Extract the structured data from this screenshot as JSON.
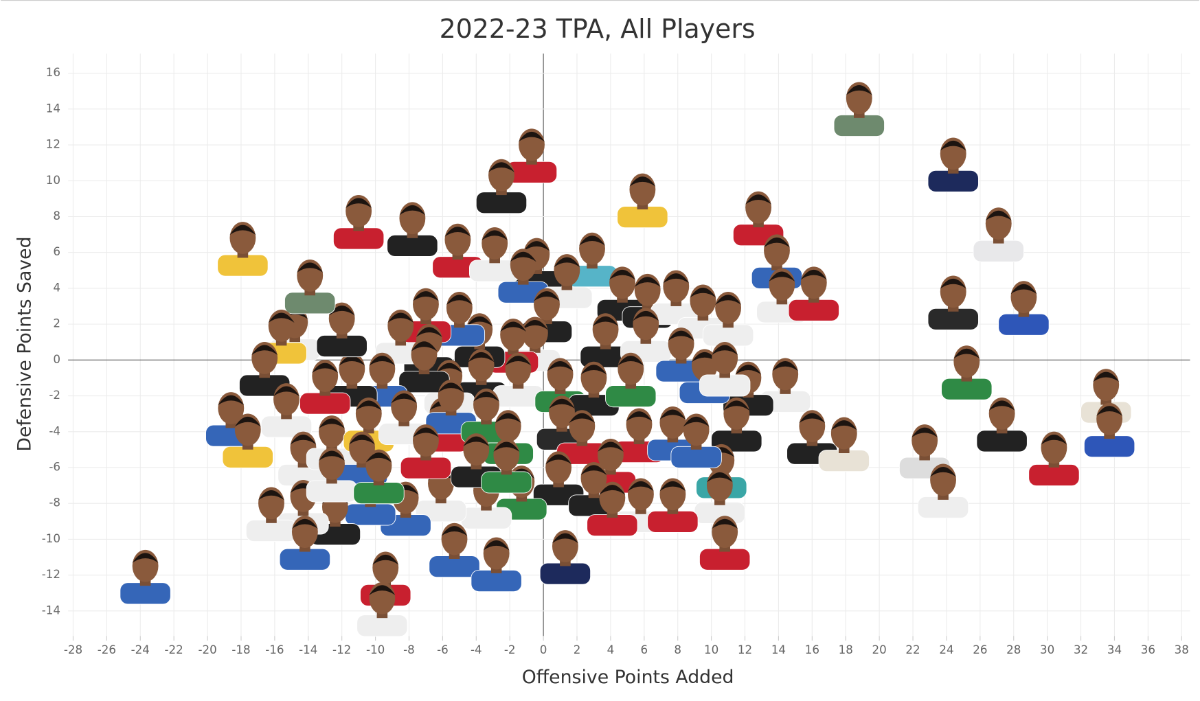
{
  "chart_data": {
    "type": "scatter",
    "title": "2022-23 TPA, All Players",
    "x_label": "Offensive Points Added",
    "y_label": "Defensive Points Saved",
    "xlim": [
      -28.3,
      38.5
    ],
    "ylim": [
      -15.4,
      17.1
    ],
    "xticks": [
      -28,
      -26,
      -24,
      -22,
      -20,
      -18,
      -16,
      -14,
      -12,
      -10,
      -8,
      -6,
      -4,
      -2,
      0,
      2,
      4,
      6,
      8,
      10,
      12,
      14,
      16,
      18,
      20,
      22,
      24,
      26,
      28,
      30,
      32,
      34,
      36,
      38
    ],
    "yticks": [
      -14,
      -12,
      -10,
      -8,
      -6,
      -4,
      -2,
      0,
      2,
      4,
      6,
      8,
      10,
      12,
      14,
      16
    ],
    "grid": true,
    "x": [
      18.8,
      24.4,
      27.1,
      24.4,
      28.6,
      25.2,
      27.3,
      33.5,
      33.7,
      30.4,
      22.7,
      23.8,
      12.8,
      13.9,
      14.2,
      16.1,
      14.4,
      12.2,
      11.5,
      16.0,
      17.9,
      10.6,
      10.5,
      10.8,
      -0.7,
      -2.5,
      5.9,
      2.9,
      -0.4,
      -5.1,
      -2.9,
      -1.2,
      1.4,
      4.7,
      6.2,
      7.9,
      9.5,
      11.0,
      0.2,
      3.7,
      6.1,
      8.2,
      9.6,
      10.8,
      -0.5,
      -1.8,
      -3.8,
      -5.0,
      -7.0,
      -6.8,
      -8.5,
      -3.7,
      -1.5,
      1.0,
      3.0,
      5.2,
      -5.6,
      -7.1,
      -9.6,
      -11.4,
      -13.0,
      -14.8,
      -12.0,
      -13.9,
      -15.6,
      -16.6,
      -15.3,
      -18.6,
      -17.6,
      -14.3,
      -12.6,
      -10.4,
      -8.3,
      -6.0,
      -5.5,
      -3.4,
      -2.1,
      1.1,
      2.3,
      5.7,
      7.7,
      9.1,
      4.0,
      0.9,
      3.0,
      5.8,
      7.7,
      4.1,
      -1.3,
      -3.4,
      -6.1,
      -8.2,
      -10.3,
      -12.4,
      -14.3,
      -16.2,
      -14.2,
      -5.3,
      -2.8,
      1.3,
      -9.4,
      -9.6,
      -23.7,
      -17.9,
      -11.0,
      -7.8,
      -10.8,
      -12.6,
      -9.8,
      -7.0,
      -4.0,
      -2.2
    ],
    "values": [
      14.1,
      11.0,
      7.1,
      3.3,
      3.0,
      -0.6,
      -3.5,
      -1.9,
      -3.8,
      -5.4,
      -5.0,
      -7.2,
      8.0,
      5.6,
      3.7,
      3.8,
      -1.3,
      -1.5,
      -3.5,
      -4.2,
      -4.6,
      -6.1,
      -7.5,
      -10.1,
      11.5,
      9.8,
      9.0,
      5.7,
      5.4,
      6.2,
      6.0,
      4.8,
      4.5,
      3.8,
      3.4,
      3.6,
      2.8,
      2.4,
      2.6,
      1.2,
      1.5,
      0.4,
      -0.8,
      -0.4,
      1.0,
      0.9,
      1.2,
      2.4,
      2.6,
      0.6,
      1.4,
      -0.8,
      -1.0,
      -1.3,
      -1.5,
      -1.0,
      -1.4,
      -0.2,
      -1.0,
      -1.0,
      -1.4,
      1.6,
      1.8,
      4.2,
      1.4,
      -0.4,
      -2.7,
      -3.2,
      -4.4,
      -5.4,
      -4.5,
      -3.5,
      -3.1,
      -3.5,
      -2.5,
      -3.0,
      -4.2,
      -3.4,
      -4.2,
      -4.1,
      -4.0,
      -4.4,
      -5.8,
      -6.5,
      -7.1,
      -8.0,
      -8.0,
      -8.2,
      -7.3,
      -7.8,
      -7.4,
      -8.2,
      -7.6,
      -8.7,
      -8.1,
      -8.5,
      -10.1,
      -10.5,
      -11.3,
      -10.9,
      -12.1,
      -13.8,
      -12.0,
      6.3,
      7.8,
      7.4,
      -5.4,
      -6.3,
      -6.4,
      -5.0,
      -5.5,
      -5.8
    ],
    "colors": [
      "#6e8a6e",
      "#1d2a5c",
      "#e8e8ea",
      "#2a2a2a",
      "#2e56b8",
      "#2f8a45",
      "#222222",
      "#e8e2d6",
      "#2e56b8",
      "#c8202f",
      "#dddddd",
      "#eeeeee",
      "#c8202f",
      "#3566b8",
      "#eeeeee",
      "#c8202f",
      "#eeeeee",
      "#222222",
      "#222222",
      "#222222",
      "#e8e2d6",
      "#3aa6a6",
      "#eeeeee",
      "#c8202f",
      "#c8202f",
      "#222222",
      "#f0c33a",
      "#56b4c8",
      "#222222",
      "#c8202f",
      "#eeeeee",
      "#3566b8",
      "#eeeeee",
      "#222222",
      "#222222",
      "#eeeeee",
      "#eeeeee",
      "#eeeeee",
      "#222222",
      "#222222",
      "#eeeeee",
      "#3566b8",
      "#3566b8",
      "#eeeeee",
      "#eeeeee",
      "#c8202f",
      "#222222",
      "#3566b8",
      "#c8202f",
      "#222222",
      "#eeeeee",
      "#222222",
      "#eeeeee",
      "#2f8a45",
      "#222222",
      "#2f8a45",
      "#eeeeee",
      "#222222",
      "#3566b8",
      "#222222",
      "#c8202f",
      "#eeeeee",
      "#222222",
      "#6e8a6e",
      "#f0c33a",
      "#222222",
      "#eeeeee",
      "#3566b8",
      "#f0c33a",
      "#eeeeee",
      "#eeeeee",
      "#f0c33a",
      "#eeeeee",
      "#c8202f",
      "#3566b8",
      "#2f8a45",
      "#2f8a45",
      "#2a2a2a",
      "#c8202f",
      "#c8202f",
      "#3566b8",
      "#3566b8",
      "#c8202f",
      "#222222",
      "#222222",
      "#eeeeee",
      "#c8202f",
      "#c8202f",
      "#2f8a45",
      "#eeeeee",
      "#eeeeee",
      "#3566b8",
      "#3566b8",
      "#222222",
      "#eeeeee",
      "#eeeeee",
      "#3566b8",
      "#3566b8",
      "#3566b8",
      "#1d2a5c",
      "#c8202f",
      "#eeeeee",
      "#3566b8",
      "#f0c33a",
      "#c8202f",
      "#222222",
      "#3566b8",
      "#eeeeee",
      "#2f8a45",
      "#c8202f",
      "#222222",
      "#2f8a45"
    ]
  }
}
